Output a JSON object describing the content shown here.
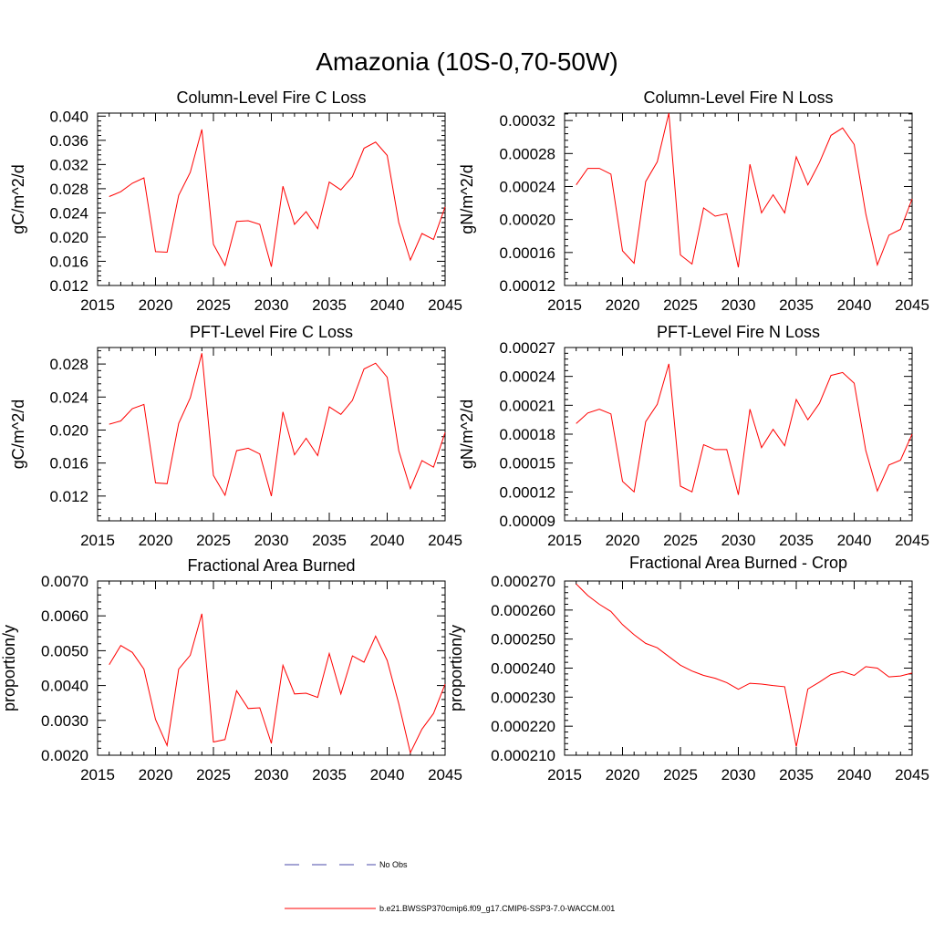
{
  "figure": {
    "title": "Amazonia (10S-0,70-50W)"
  },
  "legend": [
    {
      "label": "No Obs",
      "color": "#4a4aa8",
      "dash": "dashed"
    },
    {
      "label": "b.e21.BWSSP370cmip6.f09_g17.CMIP6-SSP3-7.0-WACCM.001",
      "color": "#ff0000",
      "dash": "solid"
    }
  ],
  "chart_data": [
    {
      "type": "line",
      "title": "Column-Level Fire C Loss",
      "ylabel": "gC/m^2/d",
      "xlabel": "",
      "xlim": [
        2015,
        2045
      ],
      "ylim": [
        0.012,
        0.0405
      ],
      "xticks": [
        "2015",
        "2020",
        "2025",
        "2030",
        "2035",
        "2040",
        "2045"
      ],
      "yticks": [
        "0.012",
        "0.016",
        "0.020",
        "0.024",
        "0.028",
        "0.032",
        "0.036",
        "0.040"
      ],
      "x": [
        2016,
        2017,
        2018,
        2019,
        2020,
        2021,
        2022,
        2023,
        2024,
        2025,
        2026,
        2027,
        2028,
        2029,
        2030,
        2031,
        2032,
        2033,
        2034,
        2035,
        2036,
        2037,
        2038,
        2039,
        2040,
        2041,
        2042,
        2043,
        2044,
        2045
      ],
      "series": [
        {
          "name": "b.e21.BWSSP370cmip6.f09_g17.CMIP6-SSP3-7.0-WACCM.001",
          "color": "#ff0000",
          "values": [
            0.0267,
            0.0275,
            0.0289,
            0.0298,
            0.0176,
            0.0175,
            0.0269,
            0.0307,
            0.0378,
            0.0188,
            0.0153,
            0.0226,
            0.0227,
            0.0221,
            0.0151,
            0.0284,
            0.0221,
            0.0242,
            0.0214,
            0.0291,
            0.0278,
            0.03,
            0.0347,
            0.0357,
            0.0335,
            0.0224,
            0.0162,
            0.0206,
            0.0196,
            0.025
          ]
        }
      ]
    },
    {
      "type": "line",
      "title": "Column-Level Fire N Loss",
      "ylabel": "gN/m^2/d",
      "xlabel": "",
      "xlim": [
        2015,
        2045
      ],
      "ylim": [
        0.00012,
        0.000329
      ],
      "xticks": [
        "2015",
        "2020",
        "2025",
        "2030",
        "2035",
        "2040",
        "2045"
      ],
      "yticks": [
        "0.00012",
        "0.00016",
        "0.00020",
        "0.00024",
        "0.00028",
        "0.00032"
      ],
      "x": [
        2016,
        2017,
        2018,
        2019,
        2020,
        2021,
        2022,
        2023,
        2024,
        2025,
        2026,
        2027,
        2028,
        2029,
        2030,
        2031,
        2032,
        2033,
        2034,
        2035,
        2036,
        2037,
        2038,
        2039,
        2040,
        2041,
        2042,
        2043,
        2044,
        2045
      ],
      "series": [
        {
          "name": "b.e21.BWSSP370cmip6.f09_g17.CMIP6-SSP3-7.0-WACCM.001",
          "color": "#ff0000",
          "values": [
            0.000242,
            0.000262,
            0.000262,
            0.000255,
            0.000162,
            0.000147,
            0.000246,
            0.00027,
            0.000329,
            0.000157,
            0.000146,
            0.000214,
            0.000204,
            0.000207,
            0.000142,
            0.000267,
            0.000208,
            0.00023,
            0.000208,
            0.000276,
            0.000242,
            0.000269,
            0.000302,
            0.000311,
            0.000291,
            0.000207,
            0.000145,
            0.000181,
            0.000188,
            0.000225
          ]
        }
      ]
    },
    {
      "type": "line",
      "title": "PFT-Level Fire C Loss",
      "ylabel": "gC/m^2/d",
      "xlabel": "",
      "xlim": [
        2015,
        2045
      ],
      "ylim": [
        0.009,
        0.03
      ],
      "xticks": [
        "2015",
        "2020",
        "2025",
        "2030",
        "2035",
        "2040",
        "2045"
      ],
      "yticks": [
        "0.012",
        "0.016",
        "0.020",
        "0.024",
        "0.028"
      ],
      "x": [
        2016,
        2017,
        2018,
        2019,
        2020,
        2021,
        2022,
        2023,
        2024,
        2025,
        2026,
        2027,
        2028,
        2029,
        2030,
        2031,
        2032,
        2033,
        2034,
        2035,
        2036,
        2037,
        2038,
        2039,
        2040,
        2041,
        2042,
        2043,
        2044,
        2045
      ],
      "series": [
        {
          "name": "b.e21.BWSSP370cmip6.f09_g17.CMIP6-SSP3-7.0-WACCM.001",
          "color": "#ff0000",
          "values": [
            0.0207,
            0.0211,
            0.0226,
            0.0231,
            0.0136,
            0.0135,
            0.0208,
            0.0239,
            0.0293,
            0.0145,
            0.0121,
            0.0175,
            0.0178,
            0.0171,
            0.012,
            0.0222,
            0.017,
            0.019,
            0.0169,
            0.0228,
            0.0219,
            0.0236,
            0.0274,
            0.0281,
            0.0264,
            0.0175,
            0.0129,
            0.0163,
            0.0155,
            0.0197
          ]
        }
      ]
    },
    {
      "type": "line",
      "title": "PFT-Level Fire N Loss",
      "ylabel": "gN/m^2/d",
      "xlabel": "",
      "xlim": [
        2015,
        2045
      ],
      "ylim": [
        9e-05,
        0.00027
      ],
      "xticks": [
        "2015",
        "2020",
        "2025",
        "2030",
        "2035",
        "2040",
        "2045"
      ],
      "yticks": [
        "0.00009",
        "0.00012",
        "0.00015",
        "0.00018",
        "0.00021",
        "0.00024",
        "0.00027"
      ],
      "x": [
        2016,
        2017,
        2018,
        2019,
        2020,
        2021,
        2022,
        2023,
        2024,
        2025,
        2026,
        2027,
        2028,
        2029,
        2030,
        2031,
        2032,
        2033,
        2034,
        2035,
        2036,
        2037,
        2038,
        2039,
        2040,
        2041,
        2042,
        2043,
        2044,
        2045
      ],
      "series": [
        {
          "name": "b.e21.BWSSP370cmip6.f09_g17.CMIP6-SSP3-7.0-WACCM.001",
          "color": "#ff0000",
          "values": [
            0.000191,
            0.000202,
            0.000206,
            0.000201,
            0.000131,
            0.00012,
            0.000193,
            0.000211,
            0.000253,
            0.000126,
            0.00012,
            0.000169,
            0.000164,
            0.000164,
            0.000117,
            0.000206,
            0.000166,
            0.000185,
            0.000168,
            0.000216,
            0.000195,
            0.000212,
            0.000241,
            0.000244,
            0.000233,
            0.000163,
            0.000121,
            0.000148,
            0.000153,
            0.00018
          ]
        }
      ]
    },
    {
      "type": "line",
      "title": "Fractional Area Burned",
      "ylabel": "proportion/y",
      "xlabel": "",
      "xlim": [
        2015,
        2045
      ],
      "ylim": [
        0.002,
        0.007
      ],
      "xticks": [
        "2015",
        "2020",
        "2025",
        "2030",
        "2035",
        "2040",
        "2045"
      ],
      "yticks": [
        "0.0020",
        "0.0030",
        "0.0040",
        "0.0050",
        "0.0060",
        "0.0070"
      ],
      "x": [
        2016,
        2017,
        2018,
        2019,
        2020,
        2021,
        2022,
        2023,
        2024,
        2025,
        2026,
        2027,
        2028,
        2029,
        2030,
        2031,
        2032,
        2033,
        2034,
        2035,
        2036,
        2037,
        2038,
        2039,
        2040,
        2041,
        2042,
        2043,
        2044,
        2045
      ],
      "series": [
        {
          "name": "b.e21.BWSSP370cmip6.f09_g17.CMIP6-SSP3-7.0-WACCM.001",
          "color": "#ff0000",
          "values": [
            0.0046,
            0.00515,
            0.00495,
            0.00447,
            0.00303,
            0.00228,
            0.00447,
            0.00487,
            0.00606,
            0.00238,
            0.00245,
            0.00385,
            0.00334,
            0.00336,
            0.00234,
            0.00458,
            0.00376,
            0.00378,
            0.00366,
            0.00492,
            0.00376,
            0.00485,
            0.00467,
            0.00542,
            0.00472,
            0.00348,
            0.00207,
            0.00275,
            0.0032,
            0.00404
          ]
        }
      ]
    },
    {
      "type": "line",
      "title": "Fractional Area Burned - Crop",
      "ylabel": "proportion/y",
      "xlabel": "",
      "xlim": [
        2015,
        2045
      ],
      "ylim": [
        0.00021,
        0.00027
      ],
      "xticks": [
        "2015",
        "2020",
        "2025",
        "2030",
        "2035",
        "2040",
        "2045"
      ],
      "yticks": [
        "0.000210",
        "0.000220",
        "0.000230",
        "0.000240",
        "0.000250",
        "0.000260",
        "0.000270"
      ],
      "x": [
        2016,
        2017,
        2018,
        2019,
        2020,
        2021,
        2022,
        2023,
        2024,
        2025,
        2026,
        2027,
        2028,
        2029,
        2030,
        2031,
        2032,
        2033,
        2034,
        2035,
        2036,
        2037,
        2038,
        2039,
        2040,
        2041,
        2042,
        2043,
        2044,
        2045
      ],
      "series": [
        {
          "name": "b.e21.BWSSP370cmip6.f09_g17.CMIP6-SSP3-7.0-WACCM.001",
          "color": "#ff0000",
          "values": [
            0.000269,
            0.000265,
            0.000262,
            0.0002595,
            0.000255,
            0.0002515,
            0.0002485,
            0.000247,
            0.000244,
            0.000241,
            0.000239,
            0.0002375,
            0.0002365,
            0.000235,
            0.0002327,
            0.0002348,
            0.0002345,
            0.000234,
            0.0002336,
            0.000213,
            0.0002328,
            0.0002352,
            0.0002378,
            0.0002388,
            0.0002375,
            0.0002405,
            0.00024,
            0.000237,
            0.0002373,
            0.0002383
          ]
        }
      ]
    }
  ]
}
